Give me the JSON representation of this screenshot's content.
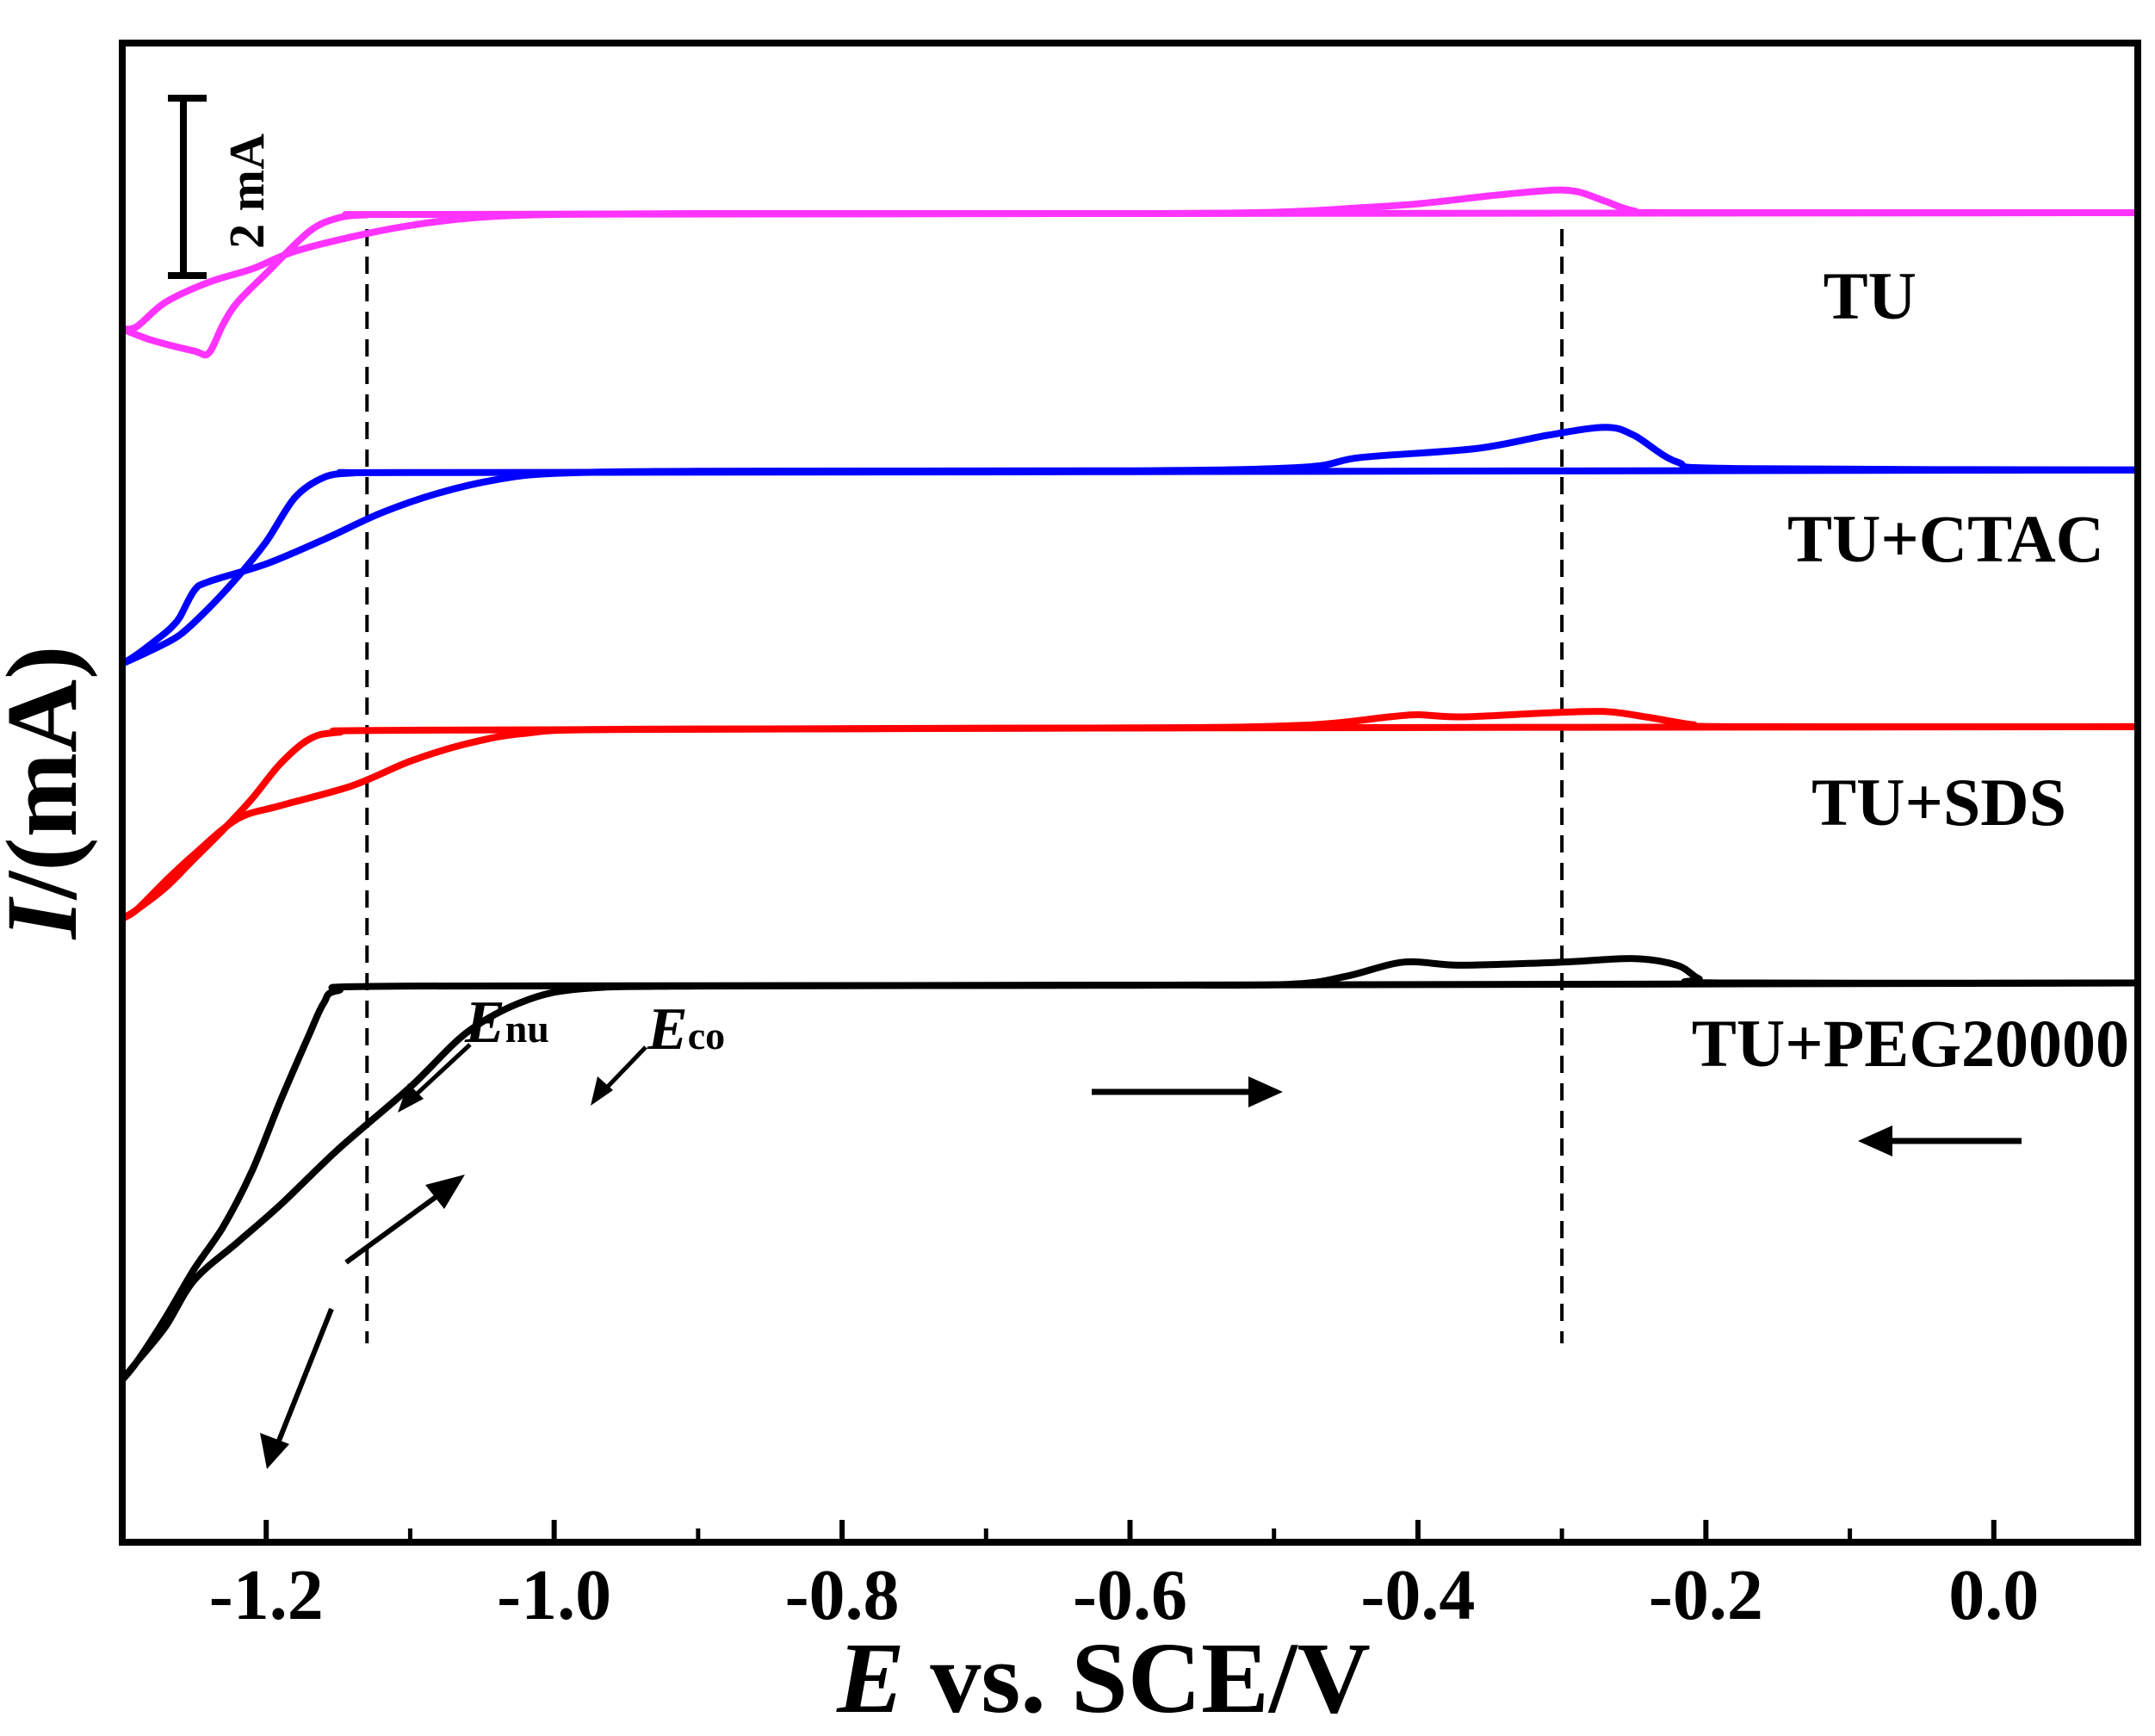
{
  "chart_data": {
    "type": "line",
    "xlabel_italic": "E",
    "xlabel_rest": " vs. SCE/V",
    "ylabel_italic": "I",
    "ylabel_rest": "/(mA)",
    "xlim": [
      -1.3,
      0.1
    ],
    "xticks": [
      {
        "value": -1.2,
        "label": "-1.2"
      },
      {
        "value": -1.0,
        "label": "-1.0"
      },
      {
        "value": -0.8,
        "label": "-0.8"
      },
      {
        "value": -0.6,
        "label": "-0.6"
      },
      {
        "value": -0.4,
        "label": "-0.4"
      },
      {
        "value": -0.2,
        "label": "-0.2"
      },
      {
        "value": 0.0,
        "label": "0.0"
      }
    ],
    "minor_xticks": [
      -1.3,
      -1.1,
      -0.9,
      -0.7,
      -0.5,
      -0.3,
      -0.1,
      0.1
    ],
    "scale_bar": {
      "value_mA": 2,
      "label": "2 mA"
    },
    "reference_lines_V": [
      -1.13,
      -0.3
    ],
    "annotations": [
      {
        "main": "E",
        "sub": "nu",
        "x_V": -1.15
      },
      {
        "main": "E",
        "sub": "co",
        "x_V": -1.01
      }
    ],
    "series": [
      {
        "name": "TU",
        "color": "#ff33ff",
        "offset_mA": 16.0,
        "forward_scan": [
          [
            -1.3,
            -2.6
          ],
          [
            -1.29,
            -2.55
          ],
          [
            -1.27,
            -2.0
          ],
          [
            -1.24,
            -1.55
          ],
          [
            -1.21,
            -1.25
          ],
          [
            -1.18,
            -0.85
          ],
          [
            -1.13,
            -0.45
          ],
          [
            -1.09,
            -0.22
          ],
          [
            -1.05,
            -0.08
          ],
          [
            -1.0,
            -0.02
          ],
          [
            -0.9,
            0.0
          ],
          [
            -0.6,
            0.0
          ],
          [
            -0.5,
            0.03
          ],
          [
            -0.44,
            0.13
          ],
          [
            -0.4,
            0.22
          ],
          [
            -0.35,
            0.4
          ],
          [
            -0.31,
            0.52
          ],
          [
            -0.29,
            0.5
          ],
          [
            -0.27,
            0.28
          ],
          [
            -0.25,
            0.06
          ],
          [
            -0.22,
            0.02
          ],
          [
            0.1,
            0.02
          ]
        ],
        "reverse_scan": [
          [
            0.1,
            0.02
          ],
          [
            -0.6,
            0.0
          ],
          [
            -1.1,
            -0.02
          ],
          [
            -1.13,
            -0.03
          ],
          [
            -1.15,
            -0.1
          ],
          [
            -1.17,
            -0.4
          ],
          [
            -1.2,
            -1.35
          ],
          [
            -1.22,
            -2.0
          ],
          [
            -1.23,
            -2.5
          ],
          [
            -1.24,
            -3.15
          ],
          [
            -1.25,
            -3.1
          ],
          [
            -1.28,
            -2.85
          ],
          [
            -1.3,
            -2.6
          ]
        ]
      },
      {
        "name": "TU+CTAC",
        "color": "#0000ff",
        "offset_mA": 10.2,
        "forward_scan": [
          [
            -1.3,
            -4.35
          ],
          [
            -1.29,
            -4.15
          ],
          [
            -1.27,
            -3.65
          ],
          [
            -1.265,
            -3.5
          ],
          [
            -1.26,
            -3.3
          ],
          [
            -1.25,
            -2.7
          ],
          [
            -1.24,
            -2.5
          ],
          [
            -1.2,
            -2.1
          ],
          [
            -1.16,
            -1.55
          ],
          [
            -1.12,
            -0.95
          ],
          [
            -1.08,
            -0.5
          ],
          [
            -1.04,
            -0.2
          ],
          [
            -1.0,
            -0.06
          ],
          [
            -0.9,
            -0.01
          ],
          [
            -0.6,
            0.0
          ],
          [
            -0.48,
            0.08
          ],
          [
            -0.44,
            0.3
          ],
          [
            -0.36,
            0.5
          ],
          [
            -0.31,
            0.8
          ],
          [
            -0.27,
            0.98
          ],
          [
            -0.25,
            0.8
          ],
          [
            -0.22,
            0.2
          ],
          [
            -0.18,
            0.05
          ],
          [
            0.1,
            0.02
          ]
        ],
        "reverse_scan": [
          [
            0.1,
            0.02
          ],
          [
            -0.6,
            -0.02
          ],
          [
            -1.1,
            -0.04
          ],
          [
            -1.14,
            -0.05
          ],
          [
            -1.16,
            -0.15
          ],
          [
            -1.18,
            -0.6
          ],
          [
            -1.2,
            -1.6
          ],
          [
            -1.22,
            -2.4
          ],
          [
            -1.24,
            -3.1
          ],
          [
            -1.26,
            -3.7
          ],
          [
            -1.28,
            -4.05
          ],
          [
            -1.3,
            -4.35
          ]
        ]
      },
      {
        "name": "TU+SDS",
        "color": "#ff0000",
        "offset_mA": 4.4,
        "forward_scan": [
          [
            -1.3,
            -4.3
          ],
          [
            -1.29,
            -4.1
          ],
          [
            -1.27,
            -3.45
          ],
          [
            -1.25,
            -2.85
          ],
          [
            -1.22,
            -2.05
          ],
          [
            -1.19,
            -1.75
          ],
          [
            -1.14,
            -1.3
          ],
          [
            -1.1,
            -0.75
          ],
          [
            -1.06,
            -0.35
          ],
          [
            -1.02,
            -0.12
          ],
          [
            -0.95,
            -0.03
          ],
          [
            -0.6,
            0.0
          ],
          [
            -0.48,
            0.06
          ],
          [
            -0.42,
            0.25
          ],
          [
            -0.4,
            0.3
          ],
          [
            -0.37,
            0.25
          ],
          [
            -0.31,
            0.34
          ],
          [
            -0.27,
            0.37
          ],
          [
            -0.24,
            0.24
          ],
          [
            -0.21,
            0.08
          ],
          [
            -0.18,
            0.03
          ],
          [
            0.1,
            0.03
          ]
        ],
        "reverse_scan": [
          [
            0.1,
            0.03
          ],
          [
            -0.6,
            0.0
          ],
          [
            -1.1,
            -0.05
          ],
          [
            -1.15,
            -0.1
          ],
          [
            -1.17,
            -0.25
          ],
          [
            -1.19,
            -0.8
          ],
          [
            -1.21,
            -1.6
          ],
          [
            -1.23,
            -2.3
          ],
          [
            -1.25,
            -2.95
          ],
          [
            -1.27,
            -3.6
          ],
          [
            -1.29,
            -4.1
          ],
          [
            -1.3,
            -4.3
          ]
        ]
      },
      {
        "name": "TU+PEG20000",
        "color": "#000000",
        "offset_mA": -1.4,
        "forward_scan": [
          [
            -1.3,
            -8.9
          ],
          [
            -1.29,
            -8.5
          ],
          [
            -1.27,
            -7.7
          ],
          [
            -1.25,
            -6.65
          ],
          [
            -1.22,
            -5.8
          ],
          [
            -1.19,
            -4.95
          ],
          [
            -1.15,
            -3.7
          ],
          [
            -1.1,
            -2.3
          ],
          [
            -1.06,
            -1.05
          ],
          [
            -1.02,
            -0.35
          ],
          [
            -0.98,
            -0.08
          ],
          [
            -0.9,
            -0.02
          ],
          [
            -0.6,
            0.0
          ],
          [
            -0.49,
            0.02
          ],
          [
            -0.45,
            0.2
          ],
          [
            -0.41,
            0.52
          ],
          [
            -0.37,
            0.45
          ],
          [
            -0.3,
            0.52
          ],
          [
            -0.25,
            0.6
          ],
          [
            -0.22,
            0.45
          ],
          [
            -0.205,
            0.15
          ],
          [
            -0.19,
            0.05
          ],
          [
            0.1,
            0.05
          ]
        ],
        "reverse_scan": [
          [
            0.1,
            0.05
          ],
          [
            -0.6,
            0.0
          ],
          [
            -1.1,
            -0.02
          ],
          [
            -1.15,
            -0.12
          ],
          [
            -1.16,
            -0.4
          ],
          [
            -1.17,
            -1.1
          ],
          [
            -1.19,
            -2.6
          ],
          [
            -1.21,
            -4.2
          ],
          [
            -1.23,
            -5.45
          ],
          [
            -1.25,
            -6.4
          ],
          [
            -1.27,
            -7.5
          ],
          [
            -1.29,
            -8.5
          ],
          [
            -1.3,
            -8.9
          ]
        ]
      }
    ]
  }
}
